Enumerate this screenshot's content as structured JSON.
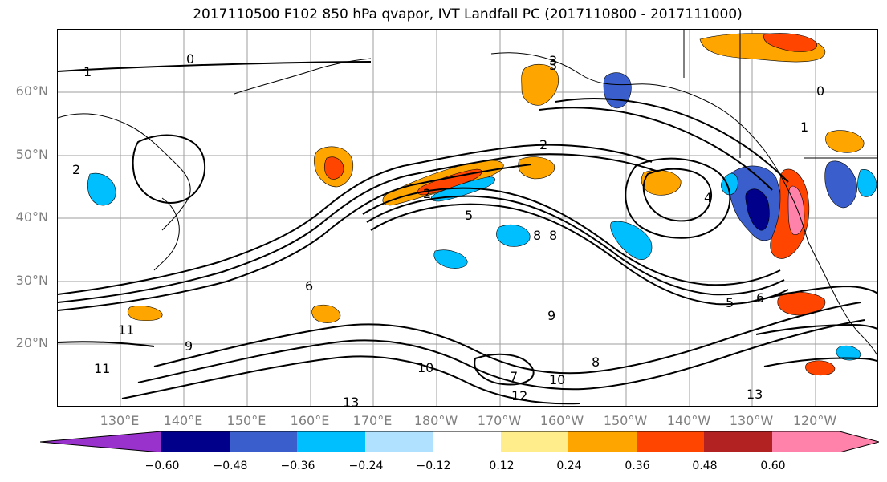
{
  "title": "2017110500 F102 850 hPa qvapor, IVT Landfall PC (2017110800 - 2017111000)",
  "lat_labels": [
    "60°N",
    "50°N",
    "40°N",
    "30°N",
    "20°N"
  ],
  "lon_labels": [
    "130°E",
    "140°E",
    "150°E",
    "160°E",
    "170°E",
    "180°W",
    "170°W",
    "160°W",
    "150°W",
    "140°W",
    "130°W",
    "120°W"
  ],
  "contour_labels": [
    "1",
    "0",
    "2",
    "2",
    "3",
    "0",
    "1",
    "2",
    "5",
    "8",
    "8",
    "9",
    "11",
    "11",
    "9",
    "8",
    "10",
    "7",
    "10",
    "12",
    "13",
    "13",
    "6",
    "5",
    "6",
    "4",
    "3"
  ],
  "colorbar": {
    "colors": [
      "#9932cc",
      "#00008b",
      "#3a5fcd",
      "#00bfff",
      "#b0e2ff",
      "#ffffff",
      "#ffec8b",
      "#ffa500",
      "#ff4500",
      "#b22222",
      "#ff82ab"
    ],
    "tick_labels": [
      "−0.60",
      "−0.48",
      "−0.36",
      "−0.24",
      "−0.12",
      "0.12",
      "0.24",
      "0.36",
      "0.48",
      "0.60"
    ]
  },
  "grid_color": "#9e9e9e"
}
